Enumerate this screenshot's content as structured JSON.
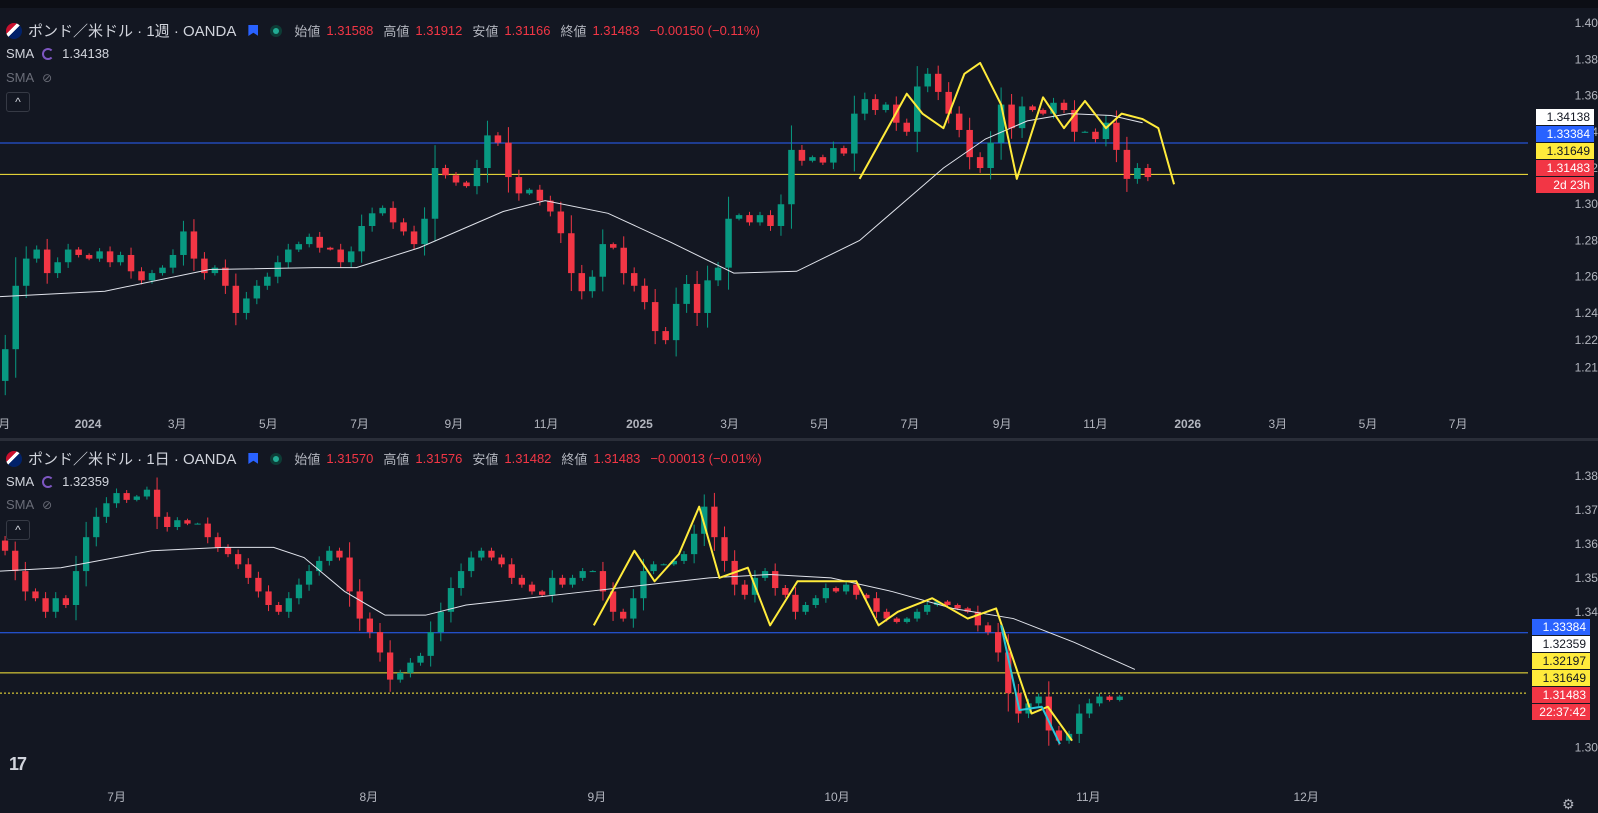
{
  "weekly": {
    "symbol_title": "ポンド／米ドル · 1週 · OANDA",
    "ohlc": {
      "open_label": "始値",
      "open": "1.31588",
      "high_label": "高値",
      "high": "1.31912",
      "low_label": "安値",
      "low": "1.31166",
      "close_label": "終値",
      "close": "1.31483",
      "change": "−0.00150 (−0.11%)"
    },
    "indicators": [
      {
        "name": "SMA",
        "value": "1.34138",
        "visible": true
      },
      {
        "name": "SMA",
        "value": "",
        "visible": false
      }
    ],
    "collapse_label": "^",
    "price_tags": [
      {
        "text": "1.34138",
        "bg": "#ffffff",
        "fg": "#131722"
      },
      {
        "text": "1.33384",
        "bg": "#2962ff",
        "fg": "#ffffff"
      },
      {
        "text": "1.31649",
        "bg": "#ffeb3b",
        "fg": "#131722"
      },
      {
        "text": "1.31483",
        "bg": "#f23645",
        "fg": "#ffffff"
      },
      {
        "text": "2d 23h",
        "bg": "#f23645",
        "fg": "#ffffff"
      }
    ]
  },
  "daily": {
    "symbol_title": "ポンド／米ドル · 1日 · OANDA",
    "ohlc": {
      "open_label": "始値",
      "open": "1.31570",
      "high_label": "高値",
      "high": "1.31576",
      "low_label": "安値",
      "low": "1.31482",
      "close_label": "終値",
      "close": "1.31483",
      "change": "−0.00013 (−0.01%)"
    },
    "indicators": [
      {
        "name": "SMA",
        "value": "1.32359",
        "visible": true
      },
      {
        "name": "SMA",
        "value": "",
        "visible": false
      }
    ],
    "collapse_label": "^",
    "price_tags": [
      {
        "text": "1.33384",
        "bg": "#2962ff",
        "fg": "#ffffff"
      },
      {
        "text": "1.32359",
        "bg": "#ffffff",
        "fg": "#131722"
      },
      {
        "text": "1.32197",
        "bg": "#ffeb3b",
        "fg": "#131722"
      },
      {
        "text": "1.31649",
        "bg": "#ffeb3b",
        "fg": "#131722"
      },
      {
        "text": "1.31483",
        "bg": "#f23645",
        "fg": "#ffffff"
      },
      {
        "text": "22:37:42",
        "bg": "#f23645",
        "fg": "#ffffff"
      }
    ]
  },
  "logo_text": "17",
  "settings_icon": "gear-icon",
  "colors": {
    "bg": "#131722",
    "up": "#089981",
    "down": "#f23645",
    "sma": "#e0e3eb",
    "blue_line": "#2962ff",
    "yellow_line": "#ffeb3b",
    "zigzag": "#ffeb3b",
    "zigzag2": "#26c6da"
  },
  "chart_data": [
    {
      "type": "candlestick",
      "title": "ポンド／米ドル · 1週 · OANDA",
      "y_ticks": [
        "1.40000",
        "1.38000",
        "1.36000",
        "1.34000",
        "1.32000",
        "1.30000",
        "1.28000",
        "1.26000",
        "1.24000",
        "1.22500",
        "1.21000"
      ],
      "ylim": [
        1.203,
        1.405
      ],
      "x_ticks": [
        {
          "label": "月",
          "t": 0.4
        },
        {
          "label": "2024",
          "t": 8.4
        },
        {
          "label": "3月",
          "t": 16.9
        },
        {
          "label": "5月",
          "t": 25.6
        },
        {
          "label": "7月",
          "t": 34.3
        },
        {
          "label": "9月",
          "t": 43.3
        },
        {
          "label": "11月",
          "t": 52.1
        },
        {
          "label": "2025",
          "t": 61.0
        },
        {
          "label": "3月",
          "t": 69.6
        },
        {
          "label": "5月",
          "t": 78.2
        },
        {
          "label": "7月",
          "t": 86.8
        },
        {
          "label": "9月",
          "t": 95.6
        },
        {
          "label": "11月",
          "t": 104.5
        },
        {
          "label": "2026",
          "t": 113.3
        },
        {
          "label": "3月",
          "t": 121.9
        },
        {
          "label": "5月",
          "t": 130.5
        },
        {
          "label": "7月",
          "t": 139.1
        }
      ],
      "t_range": [
        0,
        145
      ],
      "closes": [
        1.22,
        1.255,
        1.27,
        1.275,
        1.262,
        1.268,
        1.275,
        1.272,
        1.27,
        1.274,
        1.268,
        1.272,
        1.263,
        1.258,
        1.262,
        1.265,
        1.272,
        1.285,
        1.27,
        1.262,
        1.265,
        1.255,
        1.24,
        1.248,
        1.255,
        1.26,
        1.268,
        1.275,
        1.278,
        1.282,
        1.276,
        1.275,
        1.268,
        1.274,
        1.288,
        1.295,
        1.298,
        1.29,
        1.285,
        1.278,
        1.292,
        1.32,
        1.316,
        1.312,
        1.31,
        1.32,
        1.338,
        1.334,
        1.315,
        1.306,
        1.308,
        1.302,
        1.296,
        1.284,
        1.262,
        1.252,
        1.26,
        1.278,
        1.276,
        1.262,
        1.255,
        1.246,
        1.23,
        1.225,
        1.245,
        1.256,
        1.24,
        1.258,
        1.265,
        1.292,
        1.294,
        1.29,
        1.294,
        1.288,
        1.3,
        1.33,
        1.324,
        1.326,
        1.323,
        1.331,
        1.328,
        1.35,
        1.358,
        1.352,
        1.355,
        1.345,
        1.34,
        1.365,
        1.372,
        1.362,
        1.35,
        1.341,
        1.326,
        1.32,
        1.334,
        1.355,
        1.342,
        1.354,
        1.352,
        1.35,
        1.356,
        1.352,
        1.34,
        1.34,
        1.336,
        1.345,
        1.33,
        1.314,
        1.32,
        1.315
      ],
      "opens_from_prev_close": true,
      "sma": [
        [
          0,
          1.249
        ],
        [
          10,
          1.252
        ],
        [
          20,
          1.264
        ],
        [
          30,
          1.265
        ],
        [
          34,
          1.265
        ],
        [
          40,
          1.276
        ],
        [
          48,
          1.296
        ],
        [
          52,
          1.302
        ],
        [
          58,
          1.295
        ],
        [
          64,
          1.279
        ],
        [
          70,
          1.262
        ],
        [
          76,
          1.263
        ],
        [
          82,
          1.28
        ],
        [
          86,
          1.3
        ],
        [
          90,
          1.32
        ],
        [
          94,
          1.336
        ],
        [
          98,
          1.346
        ],
        [
          102,
          1.35
        ],
        [
          106,
          1.349
        ],
        [
          109,
          1.345
        ]
      ],
      "zigzag": [
        [
          82,
          1.314
        ],
        [
          86.5,
          1.361
        ],
        [
          88,
          1.35
        ],
        [
          90,
          1.342
        ],
        [
          92,
          1.372
        ],
        [
          93.5,
          1.378
        ],
        [
          95.5,
          1.355
        ],
        [
          97,
          1.314
        ],
        [
          99.5,
          1.359
        ],
        [
          101.5,
          1.342
        ],
        [
          103.5,
          1.357
        ],
        [
          105.5,
          1.342
        ],
        [
          107,
          1.35
        ],
        [
          109,
          1.347
        ],
        [
          110.5,
          1.342
        ],
        [
          112,
          1.311
        ]
      ],
      "hlines": [
        {
          "value": 1.3338,
          "color": "blue"
        },
        {
          "value": 1.3165,
          "color": "yellow"
        }
      ]
    },
    {
      "type": "candlestick",
      "title": "ポンド／米ドル · 1日 · OANDA",
      "y_ticks": [
        "1.38000",
        "1.37000",
        "1.36000",
        "1.35000",
        "1.34000",
        "1.30000"
      ],
      "ylim": [
        1.296,
        1.388
      ],
      "x_ticks": [
        {
          "label": "7月",
          "t": 11.5
        },
        {
          "label": "8月",
          "t": 36.4
        },
        {
          "label": "9月",
          "t": 58.9
        },
        {
          "label": "10月",
          "t": 82.6
        },
        {
          "label": "11月",
          "t": 107.4
        },
        {
          "label": "12月",
          "t": 128.9
        }
      ],
      "t_range": [
        0,
        150
      ],
      "closes": [
        1.358,
        1.352,
        1.346,
        1.344,
        1.34,
        1.344,
        1.342,
        1.352,
        1.362,
        1.368,
        1.372,
        1.375,
        1.373,
        1.374,
        1.376,
        1.368,
        1.365,
        1.367,
        1.366,
        1.366,
        1.362,
        1.359,
        1.357,
        1.354,
        1.35,
        1.346,
        1.342,
        1.34,
        1.344,
        1.348,
        1.352,
        1.355,
        1.358,
        1.356,
        1.346,
        1.338,
        1.334,
        1.328,
        1.32,
        1.322,
        1.325,
        1.327,
        1.334,
        1.34,
        1.347,
        1.352,
        1.356,
        1.358,
        1.356,
        1.354,
        1.35,
        1.348,
        1.346,
        1.345,
        1.35,
        1.348,
        1.35,
        1.352,
        1.352,
        1.346,
        1.34,
        1.338,
        1.344,
        1.352,
        1.354,
        1.354,
        1.355,
        1.357,
        1.363,
        1.371,
        1.362,
        1.355,
        1.348,
        1.345,
        1.35,
        1.352,
        1.347,
        1.345,
        1.34,
        1.342,
        1.344,
        1.347,
        1.346,
        1.348,
        1.345,
        1.344,
        1.34,
        1.338,
        1.337,
        1.338,
        1.34,
        1.342,
        1.343,
        1.342,
        1.341,
        1.34,
        1.336,
        1.334,
        1.328,
        1.316,
        1.31,
        1.313,
        1.315,
        1.305,
        1.302,
        1.304,
        1.31,
        1.313,
        1.315,
        1.314,
        1.315
      ],
      "opens_from_prev_close": true,
      "sma": [
        [
          0,
          1.352
        ],
        [
          6,
          1.353
        ],
        [
          15,
          1.358
        ],
        [
          22,
          1.359
        ],
        [
          27,
          1.359
        ],
        [
          30,
          1.356
        ],
        [
          34,
          1.346
        ],
        [
          38,
          1.339
        ],
        [
          42,
          1.339
        ],
        [
          46,
          1.342
        ],
        [
          52,
          1.344
        ],
        [
          58,
          1.346
        ],
        [
          64,
          1.348
        ],
        [
          70,
          1.35
        ],
        [
          76,
          1.351
        ],
        [
          82,
          1.35
        ],
        [
          88,
          1.346
        ],
        [
          94,
          1.341
        ],
        [
          100,
          1.338
        ],
        [
          106,
          1.331
        ],
        [
          112,
          1.323
        ]
      ],
      "zigzag": [
        [
          58.6,
          1.336
        ],
        [
          62.6,
          1.358
        ],
        [
          64.6,
          1.349
        ],
        [
          67,
          1.357
        ],
        [
          69,
          1.371
        ],
        [
          71,
          1.35
        ],
        [
          73.8,
          1.353
        ],
        [
          76,
          1.336
        ],
        [
          78.7,
          1.349
        ],
        [
          84.5,
          1.349
        ],
        [
          86.7,
          1.336
        ],
        [
          88.6,
          1.34
        ],
        [
          92,
          1.344
        ],
        [
          95.5,
          1.338
        ],
        [
          98.3,
          1.341
        ],
        [
          101.8,
          1.31
        ],
        [
          103.4,
          1.312
        ],
        [
          105.8,
          1.302
        ]
      ],
      "zigzag2": [
        [
          98.8,
          1.336
        ],
        [
          100.6,
          1.311
        ],
        [
          102.8,
          1.312
        ],
        [
          104.6,
          1.301
        ]
      ],
      "hlines": [
        {
          "value": 1.3338,
          "color": "blue"
        },
        {
          "value": 1.322,
          "color": "yellow"
        },
        {
          "value": 1.316,
          "color": "yellow-dotted"
        }
      ]
    }
  ]
}
